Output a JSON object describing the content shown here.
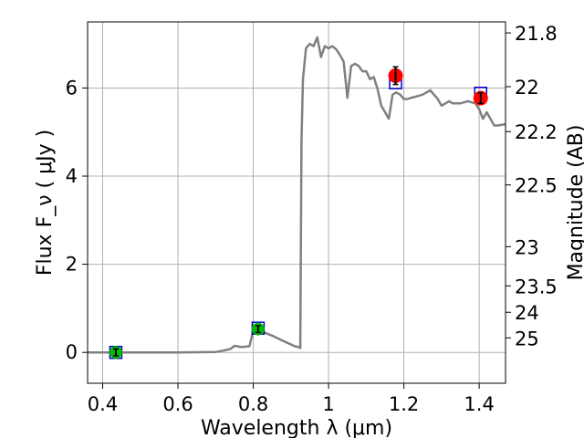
{
  "chart_data": {
    "type": "line",
    "xlabel": "Wavelength  λ (μm)",
    "ylabel_left": "Flux  F_ν  ( μJy )",
    "ylabel_right": "Magnitude (AB)",
    "xlim": [
      0.36,
      1.47
    ],
    "ylim": [
      -0.7,
      7.5
    ],
    "x_ticks": [
      0.4,
      0.6,
      0.8,
      1.0,
      1.2,
      1.4
    ],
    "x_tick_labels": [
      "0.4",
      "0.6",
      "0.8",
      "1",
      "1.2",
      "1.4"
    ],
    "y_ticks": [
      0,
      2,
      4,
      6
    ],
    "y_tick_labels": [
      "0",
      "2",
      "4",
      "6"
    ],
    "right_ticks": [
      {
        "label": "21.8",
        "flux": 7.25
      },
      {
        "label": "22",
        "flux": 6.03
      },
      {
        "label": "22.2",
        "flux": 5.01
      },
      {
        "label": "22.5",
        "flux": 3.8
      },
      {
        "label": "23",
        "flux": 2.4
      },
      {
        "label": "23.5",
        "flux": 1.51
      },
      {
        "label": "24",
        "flux": 0.91
      },
      {
        "label": "25",
        "flux": 0.33
      }
    ],
    "grid": true,
    "colors": {
      "model": "#808080",
      "observed": "#ff0000",
      "upper": "#00bb00",
      "model_photometry": "#0000cc",
      "errorbar": "#000000",
      "grid": "#b0b0b0"
    },
    "series": [
      {
        "style": "line",
        "x": [
          0.36,
          0.44,
          0.5,
          0.6,
          0.7,
          0.72,
          0.74,
          0.75,
          0.77,
          0.79,
          0.8,
          0.81,
          0.82,
          0.83,
          0.85,
          0.87,
          0.89,
          0.9,
          0.91,
          0.92,
          0.925,
          0.928,
          0.932,
          0.94,
          0.95,
          0.96,
          0.97,
          0.98,
          0.99,
          1.0,
          1.01,
          1.02,
          1.03,
          1.04,
          1.05,
          1.06,
          1.07,
          1.08,
          1.09,
          1.1,
          1.11,
          1.12,
          1.13,
          1.14,
          1.15,
          1.16,
          1.17,
          1.18,
          1.19,
          1.2,
          1.21,
          1.22,
          1.23,
          1.25,
          1.27,
          1.29,
          1.3,
          1.32,
          1.33,
          1.35,
          1.37,
          1.39,
          1.4,
          1.41,
          1.42,
          1.44,
          1.45,
          1.47
        ],
        "y": [
          0.0,
          0.0,
          0.0,
          0.0,
          0.01,
          0.04,
          0.08,
          0.15,
          0.12,
          0.14,
          0.5,
          0.55,
          0.58,
          0.45,
          0.38,
          0.3,
          0.22,
          0.18,
          0.14,
          0.12,
          0.1,
          4.8,
          6.2,
          6.9,
          7.0,
          6.95,
          7.15,
          6.7,
          6.95,
          6.9,
          6.95,
          6.88,
          6.75,
          6.6,
          5.78,
          6.5,
          6.55,
          6.5,
          6.38,
          6.38,
          6.2,
          6.25,
          5.98,
          5.6,
          5.45,
          5.3,
          5.85,
          5.9,
          5.85,
          5.75,
          5.75,
          5.78,
          5.8,
          5.85,
          5.95,
          5.75,
          5.6,
          5.7,
          5.65,
          5.65,
          5.7,
          5.65,
          5.52,
          5.3,
          5.45,
          5.15,
          5.15,
          5.18
        ]
      },
      {
        "style": "points",
        "marker": "circle",
        "x": [
          1.178,
          1.404
        ],
        "y": [
          6.28,
          5.77
        ],
        "yerr": [
          0.2,
          0.12
        ]
      },
      {
        "style": "points",
        "marker": "circle",
        "x": [
          0.435,
          0.813
        ],
        "y": [
          0.0,
          0.53
        ],
        "yerr": [
          0.08,
          0.08
        ]
      },
      {
        "style": "points",
        "marker": "open-square",
        "x": [
          0.435,
          0.813,
          1.178,
          1.404
        ],
        "y": [
          0.0,
          0.55,
          6.12,
          5.88
        ]
      }
    ]
  }
}
